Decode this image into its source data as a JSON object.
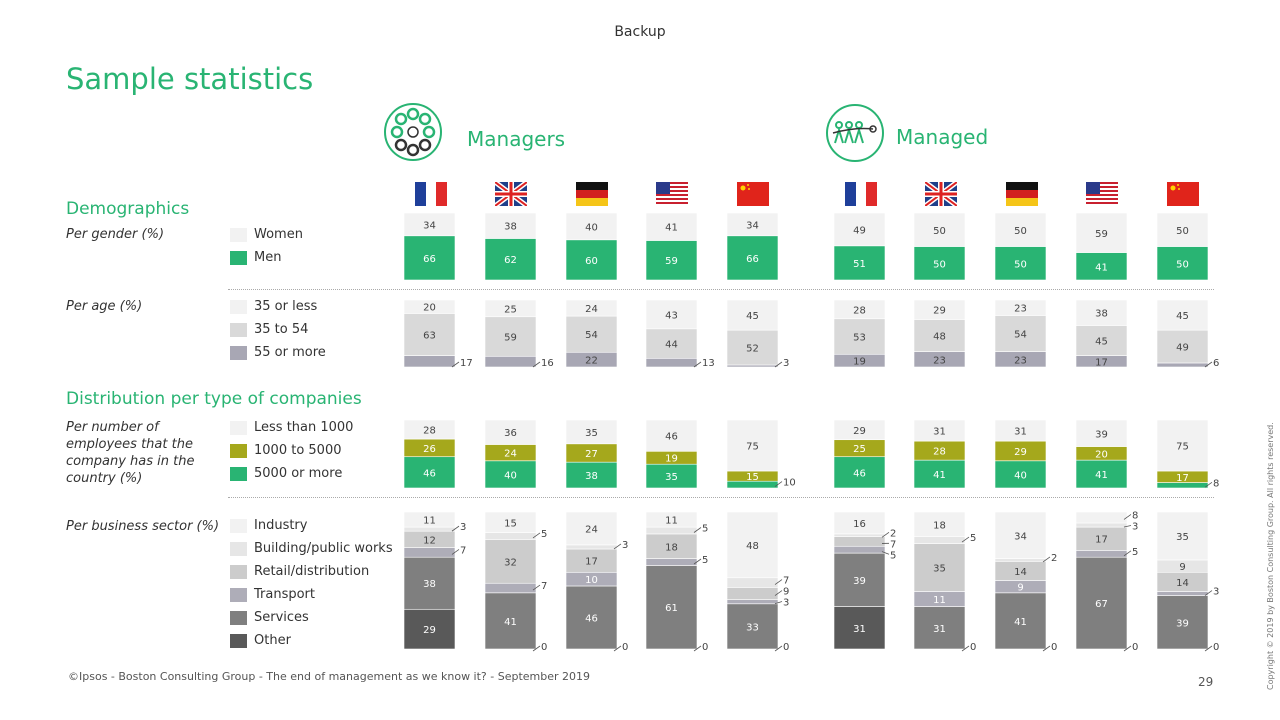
{
  "header": {
    "backup": "Backup",
    "title": "Sample statistics"
  },
  "groups": [
    {
      "name": "Managers"
    },
    {
      "name": "Managed"
    }
  ],
  "countries": [
    "France",
    "United Kingdom",
    "Germany",
    "United States",
    "China"
  ],
  "sections": {
    "demographics": "Demographics",
    "distribution": "Distribution per type of companies"
  },
  "row_labels": {
    "gender": "Per gender (%)",
    "age": "Per age (%)",
    "employees": [
      "Per number of",
      "employees that the",
      "company has in the",
      "country (%)"
    ],
    "sector": "Per business sector (%)"
  },
  "legends": {
    "gender": [
      {
        "label": "Women",
        "color": "#f2f2f2"
      },
      {
        "label": "Men",
        "color": "#29b473"
      }
    ],
    "age": [
      {
        "label": "35 or less",
        "color": "#f2f2f2"
      },
      {
        "label": "35 to 54",
        "color": "#d9d9d9"
      },
      {
        "label": "55 or more",
        "color": "#a8a7b4"
      }
    ],
    "employees": [
      {
        "label": "Less than 1000",
        "color": "#f2f2f2"
      },
      {
        "label": "1000 to 5000",
        "color": "#a5a81c"
      },
      {
        "label": "5000 or more",
        "color": "#29b473"
      }
    ],
    "sector": [
      {
        "label": "Industry",
        "color": "#f2f2f2"
      },
      {
        "label": "Building/public works",
        "color": "#e6e6e6"
      },
      {
        "label": "Retail/distribution",
        "color": "#cccccc"
      },
      {
        "label": "Transport",
        "color": "#aeadb8"
      },
      {
        "label": "Services",
        "color": "#7f7f7f"
      },
      {
        "label": "Other",
        "color": "#595959"
      }
    ]
  },
  "chart_data": [
    {
      "type": "bar",
      "stacked": true,
      "title": "Per gender (%)",
      "categories": [
        "France",
        "United Kingdom",
        "Germany",
        "United States",
        "China"
      ],
      "managers": {
        "series": [
          {
            "name": "Women",
            "values": [
              34,
              38,
              40,
              41,
              34
            ]
          },
          {
            "name": "Men",
            "values": [
              66,
              62,
              60,
              59,
              66
            ]
          }
        ]
      },
      "managed": {
        "series": [
          {
            "name": "Women",
            "values": [
              49,
              50,
              50,
              59,
              50
            ]
          },
          {
            "name": "Men",
            "values": [
              51,
              50,
              50,
              41,
              50
            ]
          }
        ]
      }
    },
    {
      "type": "bar",
      "stacked": true,
      "title": "Per age (%)",
      "categories": [
        "France",
        "United Kingdom",
        "Germany",
        "United States",
        "China"
      ],
      "managers": {
        "series": [
          {
            "name": "35 or less",
            "values": [
              20,
              25,
              24,
              43,
              45
            ]
          },
          {
            "name": "35 to 54",
            "values": [
              63,
              59,
              54,
              44,
              52
            ]
          },
          {
            "name": "55 or more",
            "values": [
              17,
              16,
              22,
              13,
              3
            ]
          }
        ]
      },
      "managed": {
        "series": [
          {
            "name": "35 or less",
            "values": [
              28,
              29,
              23,
              38,
              45
            ]
          },
          {
            "name": "35 to 54",
            "values": [
              53,
              48,
              54,
              45,
              49
            ]
          },
          {
            "name": "55 or more",
            "values": [
              19,
              23,
              23,
              17,
              6
            ]
          }
        ]
      }
    },
    {
      "type": "bar",
      "stacked": true,
      "title": "Per number of employees that the company has in the country (%)",
      "categories": [
        "France",
        "United Kingdom",
        "Germany",
        "United States",
        "China"
      ],
      "managers": {
        "series": [
          {
            "name": "Less than 1000",
            "values": [
              28,
              36,
              35,
              46,
              75
            ]
          },
          {
            "name": "1000 to 5000",
            "values": [
              26,
              24,
              27,
              19,
              15
            ]
          },
          {
            "name": "5000 or more",
            "values": [
              46,
              40,
              38,
              35,
              10
            ]
          }
        ]
      },
      "managed": {
        "series": [
          {
            "name": "Less than 1000",
            "values": [
              29,
              31,
              31,
              39,
              75
            ]
          },
          {
            "name": "1000 to 5000",
            "values": [
              25,
              28,
              29,
              20,
              17
            ]
          },
          {
            "name": "5000 or more",
            "values": [
              46,
              41,
              40,
              41,
              8
            ]
          }
        ]
      }
    },
    {
      "type": "bar",
      "stacked": true,
      "title": "Per business sector (%)",
      "categories": [
        "France",
        "United Kingdom",
        "Germany",
        "United States",
        "China"
      ],
      "managers": {
        "series": [
          {
            "name": "Industry",
            "values": [
              11,
              15,
              24,
              11,
              48
            ]
          },
          {
            "name": "Building/public works",
            "values": [
              3,
              5,
              3,
              5,
              7
            ]
          },
          {
            "name": "Retail/distribution",
            "values": [
              12,
              32,
              17,
              18,
              9
            ]
          },
          {
            "name": "Transport",
            "values": [
              7,
              7,
              10,
              5,
              3
            ]
          },
          {
            "name": "Services",
            "values": [
              38,
              41,
              46,
              61,
              33
            ]
          },
          {
            "name": "Other",
            "values": [
              29,
              0,
              0,
              0,
              0
            ]
          }
        ]
      },
      "managed": {
        "series": [
          {
            "name": "Industry",
            "values": [
              16,
              18,
              34,
              8,
              35
            ]
          },
          {
            "name": "Building/public works",
            "values": [
              2,
              5,
              2,
              3,
              9
            ]
          },
          {
            "name": "Retail/distribution",
            "values": [
              7,
              35,
              14,
              17,
              14
            ]
          },
          {
            "name": "Transport",
            "values": [
              5,
              11,
              9,
              5,
              3
            ]
          },
          {
            "name": "Services",
            "values": [
              39,
              31,
              41,
              67,
              39
            ]
          },
          {
            "name": "Other",
            "values": [
              31,
              0,
              0,
              0,
              0
            ]
          }
        ]
      }
    }
  ],
  "footer": {
    "source": "©Ipsos - Boston Consulting Group - The end of management as we know it? - September 2019",
    "page": "29",
    "copyright": "Copyright © 2019 by Boston Consulting Group. All rights reserved."
  }
}
